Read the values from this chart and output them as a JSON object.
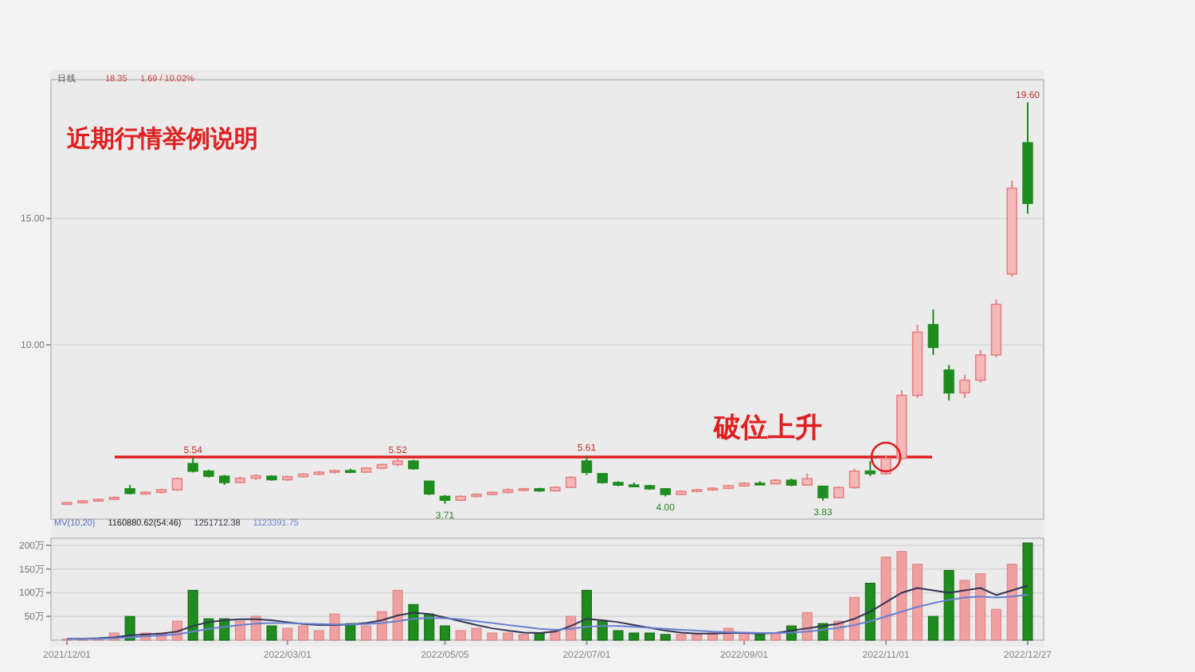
{
  "chart_data": [
    {
      "type": "candlestick",
      "title": "近期行情举例说明",
      "annotations": [
        "破位上升",
        "日线",
        "18.35",
        "1.69 / 10.02%"
      ],
      "categories": [
        null,
        null,
        null,
        null,
        null,
        null,
        null,
        null,
        null,
        null,
        null,
        null,
        null,
        null,
        null,
        null,
        null,
        null,
        null,
        null,
        null,
        null,
        null,
        null,
        null,
        null,
        null,
        null,
        null,
        null,
        null,
        null,
        null,
        null,
        null,
        null,
        null,
        null,
        null,
        null,
        null,
        null,
        null,
        null,
        null,
        null,
        null,
        null,
        null,
        null,
        null,
        null,
        null,
        null,
        null,
        null,
        null,
        null,
        null,
        null,
        null,
        null
      ],
      "ohlc": [
        [
          3.7,
          3.78,
          3.66,
          3.75
        ],
        [
          3.75,
          3.85,
          3.72,
          3.82
        ],
        [
          3.82,
          3.92,
          3.8,
          3.88
        ],
        [
          3.88,
          4.0,
          3.85,
          3.96
        ],
        [
          4.3,
          4.45,
          4.08,
          4.12
        ],
        [
          4.1,
          4.2,
          4.06,
          4.16
        ],
        [
          4.16,
          4.3,
          4.12,
          4.26
        ],
        [
          4.26,
          4.75,
          4.22,
          4.7
        ],
        [
          5.3,
          5.54,
          4.95,
          5.0
        ],
        [
          5.0,
          5.05,
          4.75,
          4.8
        ],
        [
          4.8,
          4.85,
          4.45,
          4.55
        ],
        [
          4.55,
          4.78,
          4.52,
          4.72
        ],
        [
          4.72,
          4.88,
          4.65,
          4.82
        ],
        [
          4.8,
          4.84,
          4.62,
          4.66
        ],
        [
          4.66,
          4.82,
          4.62,
          4.78
        ],
        [
          4.78,
          4.92,
          4.74,
          4.88
        ],
        [
          4.88,
          5.0,
          4.84,
          4.96
        ],
        [
          4.96,
          5.06,
          4.9,
          5.02
        ],
        [
          5.02,
          5.1,
          4.92,
          4.96
        ],
        [
          4.96,
          5.16,
          4.94,
          5.12
        ],
        [
          5.12,
          5.3,
          5.08,
          5.26
        ],
        [
          5.26,
          5.52,
          5.2,
          5.4
        ],
        [
          5.4,
          5.45,
          5.05,
          5.1
        ],
        [
          4.6,
          4.62,
          4.05,
          4.1
        ],
        [
          4.0,
          4.05,
          3.71,
          3.85
        ],
        [
          3.85,
          4.05,
          3.82,
          4.0
        ],
        [
          4.0,
          4.12,
          3.96,
          4.08
        ],
        [
          4.08,
          4.2,
          4.04,
          4.16
        ],
        [
          4.16,
          4.32,
          4.12,
          4.26
        ],
        [
          4.26,
          4.34,
          4.2,
          4.3
        ],
        [
          4.3,
          4.34,
          4.18,
          4.22
        ],
        [
          4.22,
          4.4,
          4.2,
          4.36
        ],
        [
          4.36,
          4.8,
          4.34,
          4.75
        ],
        [
          5.4,
          5.61,
          4.85,
          4.95
        ],
        [
          4.9,
          4.92,
          4.5,
          4.55
        ],
        [
          4.55,
          4.6,
          4.4,
          4.45
        ],
        [
          4.45,
          4.55,
          4.38,
          4.42
        ],
        [
          4.42,
          4.46,
          4.26,
          4.3
        ],
        [
          4.3,
          4.32,
          4.0,
          4.08
        ],
        [
          4.08,
          4.24,
          4.05,
          4.2
        ],
        [
          4.2,
          4.3,
          4.16,
          4.26
        ],
        [
          4.26,
          4.36,
          4.22,
          4.32
        ],
        [
          4.32,
          4.46,
          4.28,
          4.42
        ],
        [
          4.42,
          4.56,
          4.38,
          4.52
        ],
        [
          4.52,
          4.6,
          4.44,
          4.5
        ],
        [
          4.5,
          4.68,
          4.48,
          4.64
        ],
        [
          4.64,
          4.7,
          4.4,
          4.45
        ],
        [
          4.45,
          4.9,
          4.42,
          4.7
        ],
        [
          4.4,
          4.42,
          3.83,
          3.95
        ],
        [
          3.95,
          4.4,
          3.92,
          4.35
        ],
        [
          4.35,
          5.1,
          4.3,
          5.0
        ],
        [
          5.0,
          5.4,
          4.8,
          4.9
        ],
        [
          4.9,
          5.6,
          4.86,
          5.5
        ],
        [
          5.5,
          8.2,
          5.45,
          8.0
        ],
        [
          8.0,
          10.8,
          7.9,
          10.5
        ],
        [
          10.8,
          11.4,
          9.6,
          9.9
        ],
        [
          9.0,
          9.2,
          7.8,
          8.1
        ],
        [
          8.1,
          8.8,
          7.9,
          8.6
        ],
        [
          8.6,
          9.8,
          8.5,
          9.6
        ],
        [
          9.6,
          11.8,
          9.5,
          11.6
        ],
        [
          12.8,
          16.5,
          12.7,
          16.2
        ],
        [
          18.0,
          19.6,
          15.2,
          15.6
        ]
      ],
      "value_labels": [
        null,
        null,
        null,
        null,
        null,
        null,
        null,
        null,
        "5.54",
        null,
        null,
        null,
        null,
        null,
        null,
        null,
        null,
        null,
        null,
        null,
        null,
        "5.52",
        null,
        null,
        "3.71",
        null,
        null,
        null,
        null,
        null,
        null,
        null,
        null,
        "5.61",
        null,
        null,
        null,
        null,
        "4.00",
        null,
        null,
        null,
        null,
        null,
        null,
        null,
        null,
        null,
        "3.83",
        null,
        null,
        null,
        null,
        null,
        null,
        null,
        null,
        null,
        null,
        null,
        null,
        "19.60"
      ],
      "ylim": [
        3.1,
        20.5
      ],
      "yticks": [
        {
          "value": 15,
          "label": "15.00"
        },
        {
          "value": 10,
          "label": "10.00"
        }
      ],
      "tick_labels": "y",
      "grid": "y",
      "ref_lines": [
        {
          "axis": "y",
          "value": 5.56,
          "color": "#e02020"
        }
      ]
    },
    {
      "type": "bar",
      "legend_title": "MV(10,20)",
      "annotations": [
        "1160880.62(54:46)"
      ],
      "categories": [
        "2021/12/01",
        null,
        null,
        null,
        null,
        null,
        null,
        null,
        null,
        null,
        null,
        null,
        null,
        null,
        "2022/03/01",
        null,
        null,
        null,
        null,
        null,
        null,
        null,
        null,
        null,
        "2022/05/05",
        null,
        null,
        null,
        null,
        null,
        null,
        null,
        null,
        "2022/07/01",
        null,
        null,
        null,
        null,
        null,
        null,
        null,
        null,
        null,
        "2022/09/01",
        null,
        null,
        null,
        null,
        null,
        null,
        null,
        null,
        "2022/11/01",
        null,
        null,
        null,
        null,
        null,
        null,
        null,
        null,
        "2022/12/27"
      ],
      "values": [
        2,
        2,
        2,
        15,
        50,
        15,
        15,
        40,
        105,
        45,
        45,
        40,
        50,
        30,
        25,
        30,
        20,
        55,
        35,
        30,
        60,
        105,
        75,
        55,
        30,
        20,
        25,
        15,
        15,
        12,
        15,
        20,
        50,
        105,
        40,
        20,
        15,
        15,
        12,
        12,
        12,
        15,
        25,
        15,
        12,
        15,
        30,
        58,
        35,
        40,
        90,
        120,
        175,
        187,
        160,
        50,
        147,
        126,
        140,
        65,
        160,
        205
      ],
      "colors": [
        "#f0a0a0",
        "#f0a0a0",
        "#f0a0a0",
        "#f0a0a0",
        "#1e8c1e",
        "#f0a0a0",
        "#f0a0a0",
        "#f0a0a0",
        "#1e8c1e",
        "#1e8c1e",
        "#1e8c1e",
        "#f0a0a0",
        "#f0a0a0",
        "#1e8c1e",
        "#f0a0a0",
        "#f0a0a0",
        "#f0a0a0",
        "#f0a0a0",
        "#1e8c1e",
        "#f0a0a0",
        "#f0a0a0",
        "#f0a0a0",
        "#1e8c1e",
        "#1e8c1e",
        "#1e8c1e",
        "#f0a0a0",
        "#f0a0a0",
        "#f0a0a0",
        "#f0a0a0",
        "#f0a0a0",
        "#1e8c1e",
        "#f0a0a0",
        "#f0a0a0",
        "#1e8c1e",
        "#1e8c1e",
        "#1e8c1e",
        "#1e8c1e",
        "#1e8c1e",
        "#1e8c1e",
        "#f0a0a0",
        "#f0a0a0",
        "#f0a0a0",
        "#f0a0a0",
        "#f0a0a0",
        "#1e8c1e",
        "#f0a0a0",
        "#1e8c1e",
        "#f0a0a0",
        "#1e8c1e",
        "#f0a0a0",
        "#f0a0a0",
        "#1e8c1e",
        "#f0a0a0",
        "#f0a0a0",
        "#f0a0a0",
        "#1e8c1e",
        "#1e8c1e",
        "#f0a0a0",
        "#f0a0a0",
        "#f0a0a0",
        "#f0a0a0",
        "#1e8c1e"
      ],
      "series": [
        {
          "type": "line",
          "name": "1251712.38",
          "color": "#333355",
          "values": [
            3,
            3,
            4,
            6,
            10,
            12,
            14,
            18,
            30,
            38,
            42,
            44,
            44,
            42,
            38,
            34,
            32,
            32,
            33,
            36,
            42,
            52,
            58,
            55,
            48,
            40,
            32,
            25,
            20,
            16,
            15,
            18,
            30,
            45,
            42,
            38,
            32,
            26,
            20,
            16,
            14,
            14,
            15,
            15,
            14,
            15,
            20,
            25,
            30,
            35,
            45,
            60,
            80,
            100,
            110,
            105,
            100,
            105,
            110,
            95,
            105,
            115
          ]
        },
        {
          "type": "line",
          "name": "1123391.75",
          "color": "#6a7fd0",
          "values": [
            3,
            3,
            3,
            4,
            6,
            8,
            10,
            12,
            18,
            24,
            28,
            32,
            35,
            36,
            36,
            35,
            34,
            33,
            33,
            34,
            36,
            40,
            45,
            47,
            46,
            44,
            40,
            36,
            32,
            28,
            24,
            22,
            24,
            28,
            30,
            30,
            28,
            26,
            24,
            22,
            20,
            18,
            17,
            16,
            15,
            15,
            16,
            18,
            22,
            26,
            32,
            40,
            50,
            60,
            70,
            78,
            85,
            90,
            92,
            90,
            92,
            96
          ]
        }
      ],
      "ylim": [
        0,
        215
      ],
      "yticks": [
        {
          "value": 50,
          "label": "50万"
        },
        {
          "value": 100,
          "label": "100万"
        },
        {
          "value": 150,
          "label": "150万"
        },
        {
          "value": 200,
          "label": "200万"
        }
      ],
      "grid": "y",
      "legend": "top left"
    }
  ]
}
